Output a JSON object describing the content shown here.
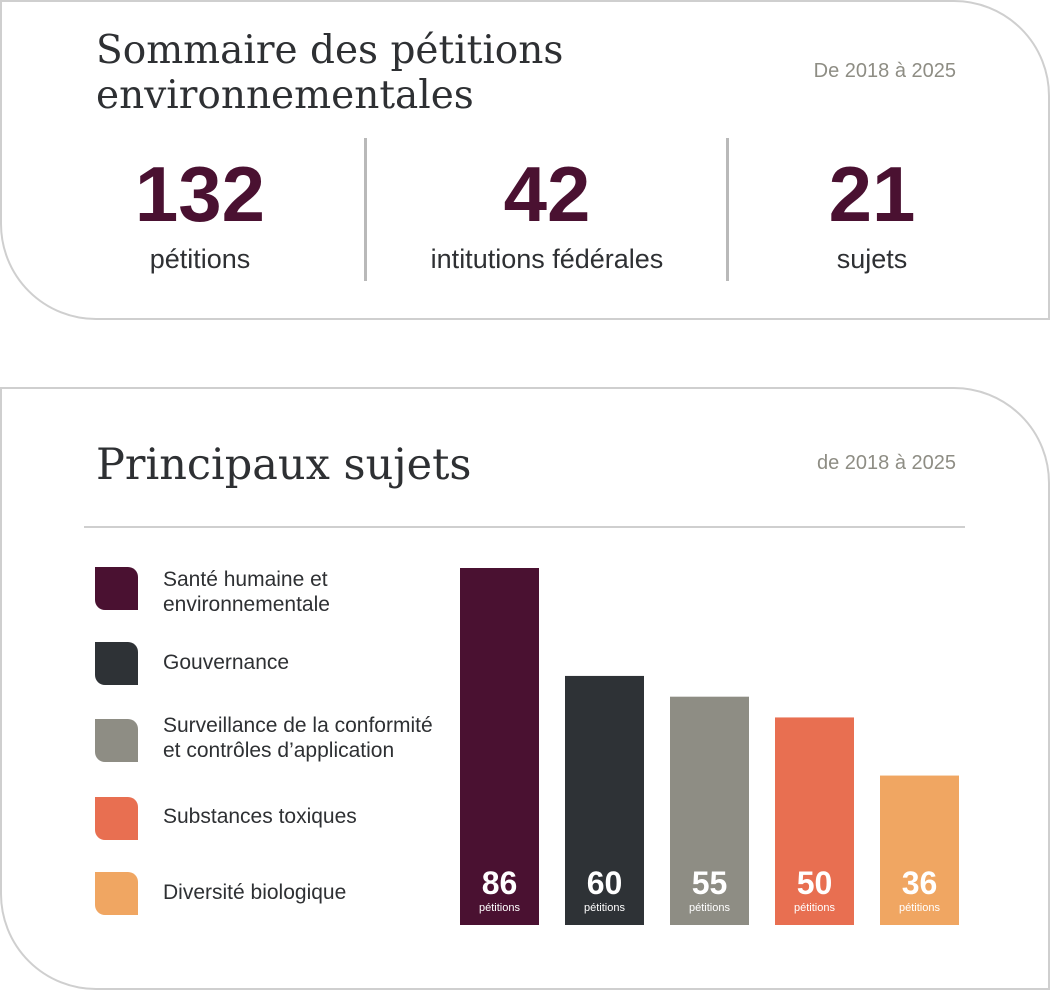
{
  "summary": {
    "title": "Sommaire des pétitions environnementales",
    "period": "De 2018 à 2025",
    "stats": [
      {
        "value": "132",
        "label": "pétitions"
      },
      {
        "value": "42",
        "label": "intitutions fédérales"
      },
      {
        "value": "21",
        "label": "sujets"
      }
    ]
  },
  "topics": {
    "title": "Principaux sujets",
    "period": "de 2018 à 2025"
  },
  "chart_data": {
    "type": "bar",
    "title": "Principaux sujets",
    "categories": [
      "Santé humaine et environnementale",
      "Gouvernance",
      "Surveillance de la conformité et contrôles d’application",
      "Substances toxiques",
      "Diversité biologique"
    ],
    "values": [
      86,
      60,
      55,
      50,
      36
    ],
    "unit_label": "pétitions",
    "colors": [
      "#4a1131",
      "#2e3236",
      "#8e8d84",
      "#e86f51",
      "#f0a662"
    ],
    "ylim": [
      0,
      86
    ],
    "legend": "left",
    "grid": false
  }
}
